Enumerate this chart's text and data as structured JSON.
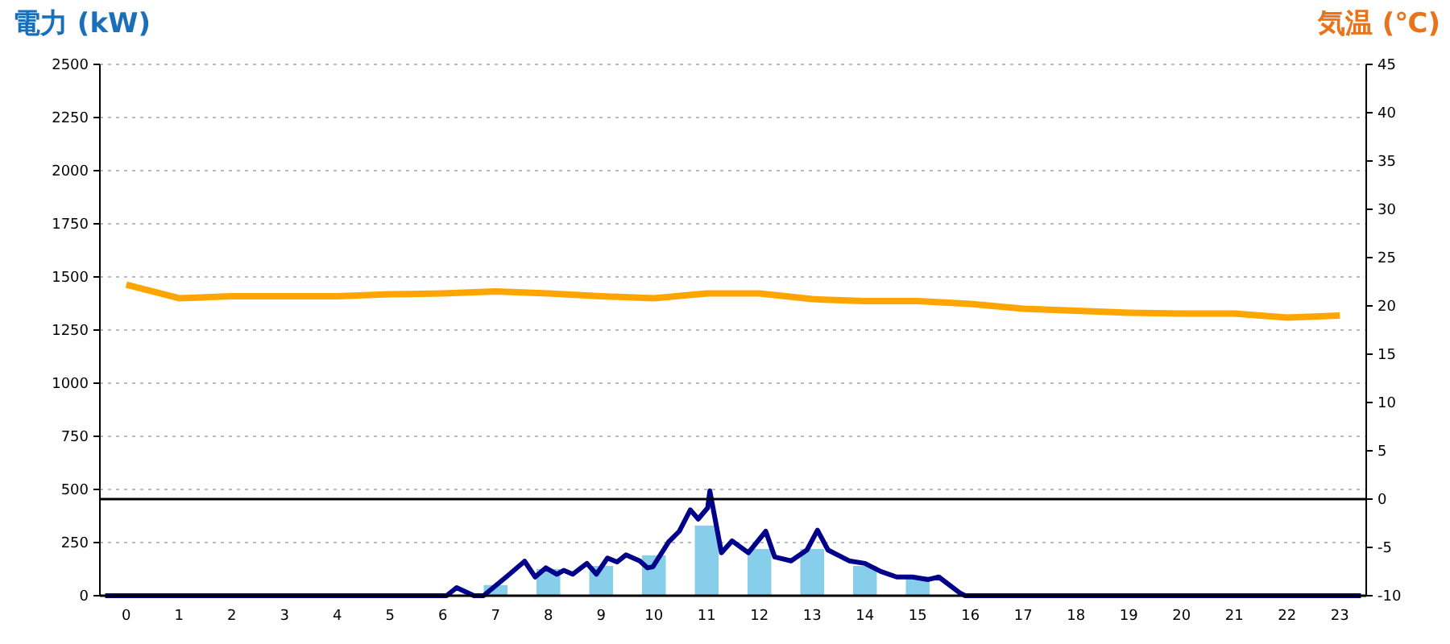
{
  "chart_data": {
    "type": "bar",
    "ylabel": "電力 (kW)",
    "y2label": "気温 (℃)",
    "x": [
      0,
      1,
      2,
      3,
      4,
      5,
      6,
      7,
      8,
      9,
      10,
      11,
      12,
      13,
      14,
      15,
      16,
      17,
      18,
      19,
      20,
      21,
      22,
      23
    ],
    "xlim": [
      -0.5,
      23.5
    ],
    "xticks": [
      0,
      1,
      2,
      3,
      4,
      5,
      6,
      7,
      8,
      9,
      10,
      11,
      12,
      13,
      14,
      15,
      16,
      17,
      18,
      19,
      20,
      21,
      22,
      23
    ],
    "ylim": [
      0,
      2500
    ],
    "yticks": [
      0,
      250,
      500,
      750,
      1000,
      1250,
      1500,
      1750,
      2000,
      2250,
      2500
    ],
    "y2lim": [
      -10,
      45
    ],
    "y2ticks": [
      -10,
      -5,
      0,
      5,
      10,
      15,
      20,
      25,
      30,
      35,
      40,
      45
    ],
    "grid": "y",
    "ref_lines": [
      {
        "axis": "y2",
        "value": 0,
        "color": "#000000"
      }
    ],
    "series": [
      {
        "color": "#87ceeb",
        "values": [
          0,
          0,
          0,
          0,
          0,
          0,
          0,
          50,
          125,
          140,
          190,
          330,
          220,
          220,
          140,
          90,
          0,
          0,
          0,
          0,
          0,
          0,
          0,
          0
        ]
      },
      {
        "type": "line",
        "color": "#00008b",
        "x": [
          -0.4,
          6.07,
          6.26,
          6.59,
          6.77,
          7.2,
          7.55,
          7.75,
          7.95,
          8.16,
          8.29,
          8.46,
          8.73,
          8.91,
          9.12,
          9.3,
          9.47,
          9.73,
          9.88,
          9.98,
          10.28,
          10.48,
          10.69,
          10.84,
          11.02,
          11.06,
          11.28,
          11.48,
          11.79,
          12.12,
          12.29,
          12.6,
          12.9,
          13.1,
          13.3,
          13.7,
          14,
          14.3,
          14.6,
          14.9,
          15.2,
          15.4,
          15.8,
          15.9,
          23.4
        ],
        "values": [
          0,
          0,
          38,
          0,
          0,
          88,
          162,
          88,
          131,
          101,
          119,
          101,
          152,
          101,
          177,
          159,
          192,
          164,
          131,
          136,
          253,
          303,
          404,
          361,
          414,
          493,
          202,
          258,
          202,
          303,
          182,
          164,
          215,
          308,
          215,
          164,
          152,
          114,
          88,
          88,
          76,
          88,
          13,
          0,
          0
        ]
      },
      {
        "type": "line",
        "axis": "y2",
        "color": "#ffa500",
        "values": [
          22.2,
          20.8,
          21,
          21,
          21,
          21.2,
          21.3,
          21.5,
          21.3,
          21,
          20.8,
          21.3,
          21.3,
          20.7,
          20.5,
          20.5,
          20.2,
          19.7,
          19.5,
          19.3,
          19.2,
          19.2,
          18.8,
          19
        ]
      }
    ]
  }
}
